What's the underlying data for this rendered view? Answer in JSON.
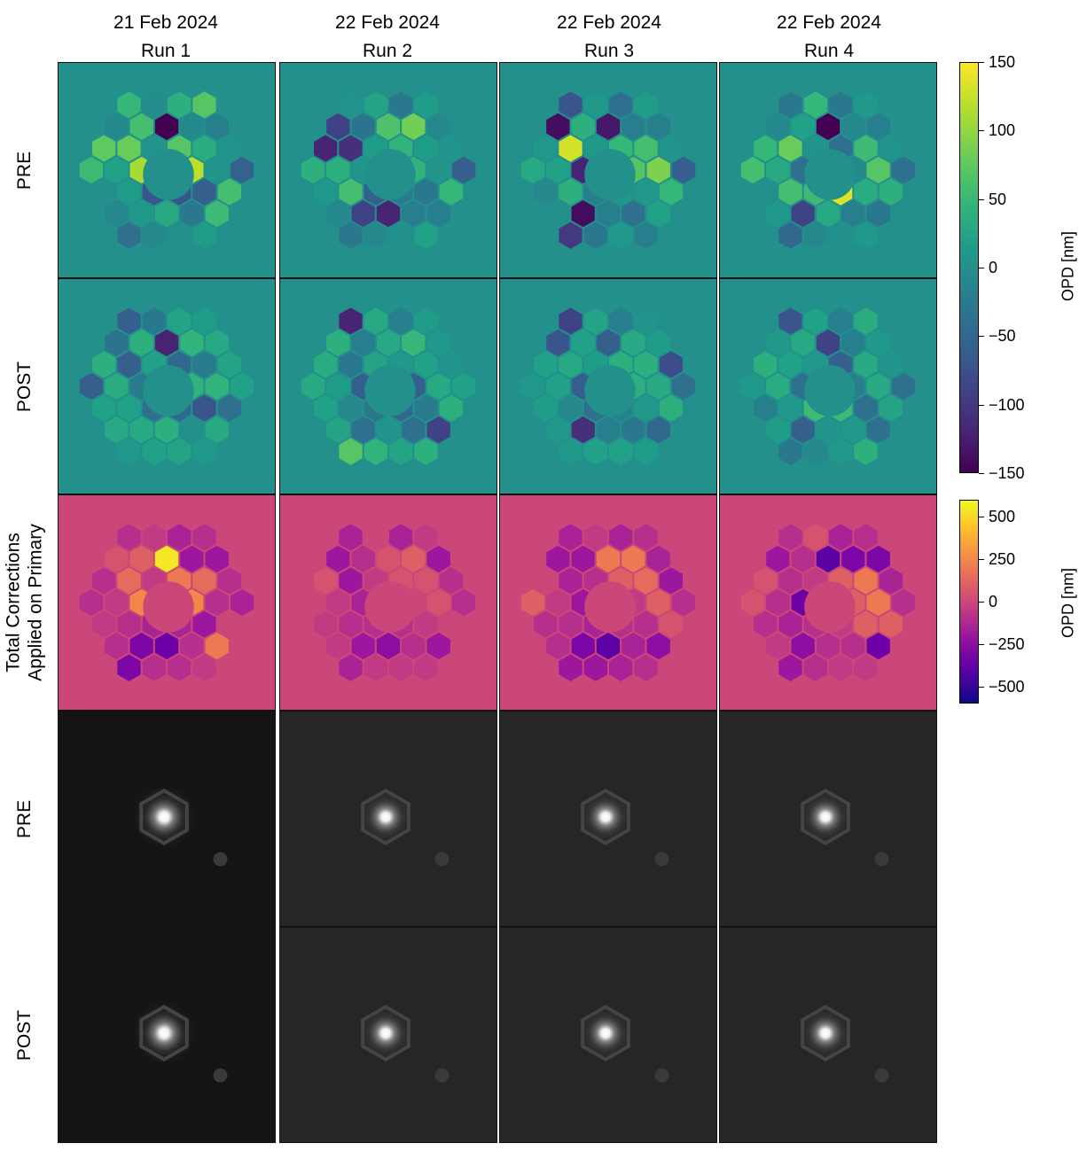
{
  "chart_data": {
    "type": "heatmap",
    "columns": [
      {
        "date": "21 Feb 2024",
        "run": "Run 1"
      },
      {
        "date": "22 Feb 2024",
        "run": "Run 2"
      },
      {
        "date": "22 Feb 2024",
        "run": "Run 3"
      },
      {
        "date": "22 Feb 2024",
        "run": "Run 4"
      }
    ],
    "rows": [
      {
        "label": "PRE",
        "kind": "opd",
        "colormap": "viridis",
        "scale": [
          -150,
          150
        ],
        "values": [
          [
            -70,
            -70,
            120,
            70,
            5,
            110,
            10,
            30,
            -30,
            -60,
            5,
            35,
            -10,
            -150,
            60,
            80,
            20,
            15,
            -40,
            -10,
            0,
            15,
            55,
            60,
            -55,
            5,
            -20,
            70,
            40,
            -5,
            50,
            -10,
            75,
            55,
            0,
            -10
          ],
          [
            -60,
            -25,
            45,
            45,
            15,
            5,
            -90,
            -120,
            -20,
            -30,
            5,
            15,
            85,
            65,
            -35,
            -110,
            40,
            60,
            -30,
            -10,
            0,
            20,
            -20,
            50,
            -60,
            5,
            -10,
            15,
            -30,
            25,
            5,
            -90,
            -120,
            40,
            10,
            -10
          ],
          [
            -20,
            10,
            70,
            50,
            10,
            -120,
            -140,
            -20,
            -40,
            10,
            90,
            60,
            -20,
            -130,
            40,
            130,
            20,
            40,
            -100,
            -30,
            10,
            -20,
            20,
            50,
            -60,
            5,
            -20,
            15,
            -40,
            10,
            -70,
            -140,
            10,
            30,
            -10,
            0
          ],
          [
            55,
            135,
            -10,
            -40,
            5,
            -40,
            -90,
            30,
            -20,
            35,
            70,
            55,
            -10,
            -150,
            20,
            80,
            30,
            60,
            -50,
            -10,
            0,
            10,
            -30,
            40,
            -40,
            5,
            -20,
            10,
            -30,
            50,
            -30,
            -10,
            50,
            60,
            0,
            10
          ]
        ]
      },
      {
        "label": "POST",
        "kind": "opd",
        "colormap": "viridis",
        "scale": [
          -150,
          150
        ],
        "values": [
          [
            -40,
            -50,
            45,
            -50,
            20,
            -25,
            30,
            40,
            0,
            -70,
            45,
            -25,
            45,
            -120,
            40,
            -60,
            35,
            20,
            10,
            20,
            25,
            10,
            30,
            -40,
            20,
            25,
            30,
            15,
            25,
            -30,
            -60,
            -35,
            40,
            -60,
            20,
            30
          ],
          [
            -30,
            -50,
            -60,
            10,
            25,
            -60,
            -40,
            5,
            -40,
            -25,
            30,
            20,
            50,
            30,
            -20,
            -30,
            15,
            -10,
            70,
            45,
            25,
            40,
            -90,
            40,
            20,
            5,
            10,
            15,
            -20,
            30,
            -120,
            40,
            35,
            30,
            20,
            25
          ],
          [
            -40,
            -15,
            40,
            40,
            15,
            -60,
            -110,
            -20,
            -30,
            10,
            30,
            40,
            30,
            -60,
            20,
            30,
            20,
            -10,
            10,
            20,
            20,
            15,
            -50,
            40,
            -40,
            -80,
            15,
            5,
            -20,
            25,
            -90,
            -70,
            20,
            10,
            15,
            10
          ],
          [
            55,
            55,
            -20,
            -60,
            10,
            -40,
            -60,
            5,
            10,
            -40,
            30,
            30,
            -20,
            -90,
            30,
            20,
            35,
            10,
            -30,
            -10,
            10,
            40,
            -40,
            25,
            -40,
            5,
            10,
            35,
            -20,
            20,
            -70,
            10,
            40,
            10,
            -20,
            15
          ]
        ]
      },
      {
        "label": "Total Corrections\nApplied on Primary",
        "kind": "opd",
        "colormap": "plasma",
        "scale": [
          -600,
          600
        ],
        "values": [
          [
            -150,
            -150,
            250,
            200,
            -50,
            250,
            -300,
            -350,
            -100,
            -200,
            -100,
            150,
            -200,
            550,
            100,
            150,
            -50,
            -100,
            -300,
            -100,
            -100,
            -50,
            200,
            0,
            -150,
            -100,
            -200,
            -100,
            -150,
            -50,
            -100,
            50,
            -100,
            -100,
            -50,
            -100
          ],
          [
            -100,
            -100,
            0,
            50,
            -50,
            -150,
            -200,
            -250,
            -100,
            -50,
            50,
            50,
            100,
            50,
            -100,
            -200,
            -50,
            -100,
            -150,
            -50,
            -50,
            -50,
            -200,
            0,
            -100,
            -100,
            -200,
            -50,
            -150,
            0,
            -150,
            -200,
            50,
            0,
            -50,
            -50
          ],
          [
            -150,
            -100,
            -50,
            100,
            -100,
            -200,
            -300,
            -400,
            -150,
            -100,
            100,
            150,
            200,
            200,
            -200,
            -150,
            -50,
            -100,
            -200,
            -200,
            -150,
            -100,
            -250,
            50,
            -100,
            -200,
            -150,
            -100,
            -150,
            -50,
            -150,
            -200,
            0,
            100,
            -100,
            -100
          ],
          [
            -100,
            -50,
            100,
            100,
            -50,
            -350,
            -250,
            -100,
            -100,
            100,
            200,
            200,
            -300,
            -400,
            -100,
            -100,
            -100,
            -150,
            -200,
            -100,
            -50,
            -50,
            -350,
            100,
            -100,
            -150,
            -300,
            -100,
            -150,
            50,
            -100,
            -200,
            50,
            50,
            -100,
            -50
          ]
        ]
      },
      {
        "label": "PRE",
        "kind": "psf"
      },
      {
        "label": "POST",
        "kind": "psf"
      }
    ],
    "colorbars": [
      {
        "label": "OPD [nm]",
        "ticks": [
          150,
          100,
          50,
          0,
          -50,
          -100,
          -150
        ],
        "tick_labels": [
          "150",
          "100",
          "50",
          "0",
          "−50",
          "−100",
          "−150"
        ],
        "range": [
          -150,
          150
        ],
        "colormap": "viridis"
      },
      {
        "label": "OPD [nm]",
        "ticks": [
          500,
          250,
          0,
          -250,
          -500
        ],
        "tick_labels": [
          "500",
          "250",
          "0",
          "−250",
          "−500"
        ],
        "range": [
          -600,
          600
        ],
        "colormap": "plasma"
      }
    ]
  }
}
